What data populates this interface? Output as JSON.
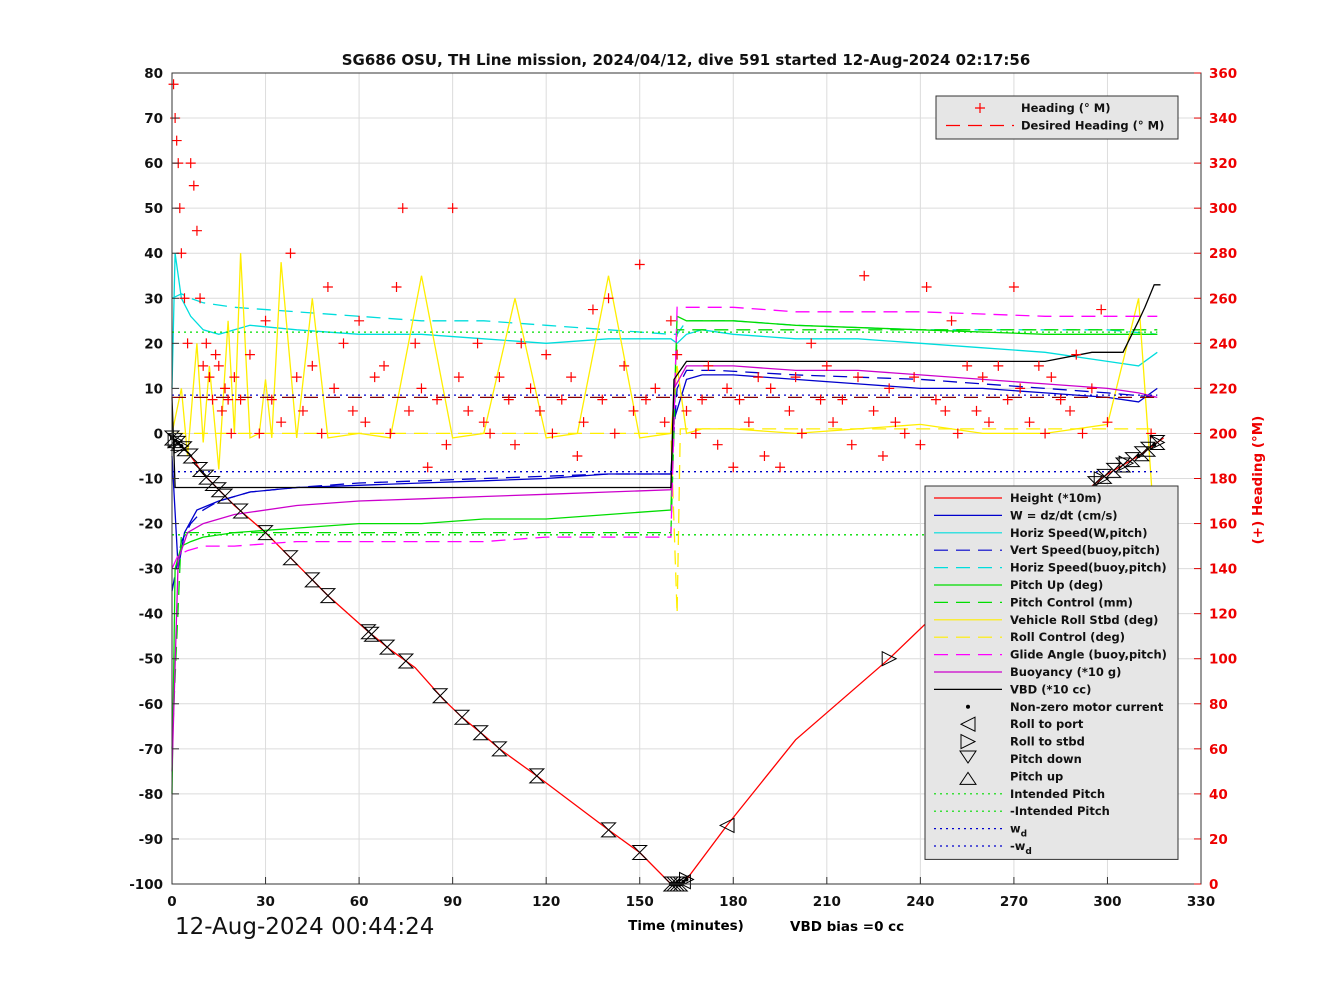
{
  "chart_data": {
    "type": "line",
    "title": "SG686 OSU, TH Line mission, 2024/04/12, dive 591 started 12-Aug-2024 02:17:56",
    "xlabel": "Time (minutes)",
    "ylabel_right": "(+) Heading (°M)",
    "xlim": [
      0,
      330
    ],
    "ylim": [
      -100,
      80
    ],
    "ylim_right": [
      0,
      360
    ],
    "x_ticks": [
      "0",
      "30",
      "60",
      "90",
      "120",
      "150",
      "180",
      "210",
      "240",
      "270",
      "300",
      "330"
    ],
    "y_ticks": [
      "80",
      "70",
      "60",
      "50",
      "40",
      "30",
      "20",
      "10",
      "0",
      "-10",
      "-20",
      "-30",
      "-40",
      "-50",
      "-60",
      "-70",
      "-80",
      "-90",
      "-100"
    ],
    "y_ticks_right": [
      "360",
      "340",
      "320",
      "300",
      "280",
      "260",
      "240",
      "220",
      "200",
      "180",
      "160",
      "140",
      "120",
      "100",
      "80",
      "60",
      "40",
      "20",
      "0"
    ],
    "grid": true,
    "start_time_text": "12-Aug-2024 00:44:24",
    "vbd_bias_text": "VBD bias =0 cc",
    "legend_top": [
      {
        "label": "Heading (° M)",
        "color": "#ff0000",
        "style": "plus"
      },
      {
        "label": "Desired Heading (° M)",
        "color": "#ff0000",
        "style": "dash"
      }
    ],
    "legend_main": [
      {
        "label": "Height (*10m)",
        "color": "#ff0000",
        "style": "solid"
      },
      {
        "label": "W = dz/dt (cm/s)",
        "color": "#0000cc",
        "style": "solid"
      },
      {
        "label": "Horiz Speed(W,pitch)",
        "color": "#00dddd",
        "style": "solid"
      },
      {
        "label": "Vert Speed(buoy,pitch)",
        "color": "#0000cc",
        "style": "dash"
      },
      {
        "label": "Horiz Speed(buoy,pitch)",
        "color": "#00dddd",
        "style": "dash"
      },
      {
        "label": "Pitch Up (deg)",
        "color": "#00dd00",
        "style": "solid"
      },
      {
        "label": "Pitch Control (mm)",
        "color": "#00dd00",
        "style": "dash"
      },
      {
        "label": "Vehicle Roll Stbd (deg)",
        "color": "#ffee00",
        "style": "solid"
      },
      {
        "label": "Roll Control (deg)",
        "color": "#ffee00",
        "style": "dash"
      },
      {
        "label": "Glide Angle (buoy,pitch)",
        "color": "#ff00ff",
        "style": "dash"
      },
      {
        "label": "Buoyancy (*10 g)",
        "color": "#cc00cc",
        "style": "solid"
      },
      {
        "label": "VBD (*10 cc)",
        "color": "#000000",
        "style": "solid"
      },
      {
        "label": "Non-zero motor current",
        "color": "#000000",
        "style": "dot"
      },
      {
        "label": "Roll to port",
        "color": "#000000",
        "style": "tri-left"
      },
      {
        "label": "Roll to stbd",
        "color": "#000000",
        "style": "tri-right"
      },
      {
        "label": "Pitch down",
        "color": "#000000",
        "style": "tri-down"
      },
      {
        "label": "Pitch up",
        "color": "#000000",
        "style": "tri-up"
      },
      {
        "label": "Intended Pitch",
        "color": "#00dd00",
        "style": "dotted"
      },
      {
        "label": "-Intended Pitch",
        "color": "#00dd00",
        "style": "dotted"
      },
      {
        "label": "w",
        "sub": "d",
        "color": "#0000cc",
        "style": "dotted"
      },
      {
        "label": "-w",
        "sub": "d",
        "color": "#0000cc",
        "style": "dotted"
      }
    ],
    "series": [
      {
        "name": "Height (*10m)",
        "color": "#ff0000",
        "style": "solid",
        "x": [
          0,
          5,
          10,
          20,
          30,
          40,
          50,
          63,
          70,
          78,
          87,
          93,
          100,
          105,
          117,
          140,
          150,
          160,
          163,
          165,
          178,
          200,
          230,
          245,
          253,
          270,
          285,
          300,
          310,
          318
        ],
        "y": [
          -1,
          -4,
          -9,
          -16,
          -22,
          -29,
          -36,
          -44,
          -48,
          -52,
          -59,
          -63,
          -67,
          -70,
          -76,
          -88,
          -93,
          -100,
          -100,
          -99,
          -87,
          -68,
          -50,
          -40,
          -35,
          -20,
          -17,
          -9,
          -5,
          -1
        ]
      },
      {
        "name": "W = dz/dt (cm/s)",
        "color": "#0000cc",
        "style": "solid",
        "x": [
          0,
          2,
          4,
          8,
          15,
          25,
          40,
          60,
          80,
          100,
          120,
          140,
          160,
          161,
          165,
          170,
          180,
          200,
          220,
          240,
          260,
          280,
          300,
          310,
          316
        ],
        "y": [
          -5,
          -30,
          -22,
          -17,
          -15,
          -13,
          -12,
          -11.5,
          -11,
          -10.5,
          -10,
          -9,
          -9,
          3,
          12,
          13,
          13,
          12,
          11,
          10,
          10,
          9,
          8,
          7,
          10
        ]
      },
      {
        "name": "Horiz Speed(W,pitch)",
        "color": "#00dddd",
        "style": "solid",
        "x": [
          0,
          1,
          3,
          6,
          10,
          15,
          25,
          40,
          60,
          80,
          100,
          120,
          140,
          160,
          162,
          165,
          170,
          180,
          200,
          220,
          240,
          260,
          280,
          300,
          310,
          316
        ],
        "y": [
          10,
          40,
          30,
          26,
          23,
          22,
          24,
          23,
          22,
          22,
          21,
          20,
          21,
          21,
          20,
          22,
          23,
          22,
          21,
          21,
          20,
          19,
          18,
          16,
          15,
          18
        ]
      },
      {
        "name": "Vert Speed(buoy,pitch)",
        "color": "#0000cc",
        "style": "dash",
        "x": [
          0,
          3,
          6,
          10,
          15,
          25,
          40,
          60,
          80,
          100,
          120,
          140,
          160,
          162,
          165,
          175,
          200,
          240,
          280,
          300,
          316
        ],
        "y": [
          -35,
          -24,
          -20,
          -17,
          -15,
          -13,
          -12,
          -11,
          -10.5,
          -10,
          -9.5,
          -9,
          -9,
          10,
          14,
          14,
          13,
          12,
          10,
          9,
          8
        ]
      },
      {
        "name": "Horiz Speed(buoy,pitch)",
        "color": "#00dddd",
        "style": "dash",
        "x": [
          0,
          3,
          6,
          10,
          20,
          40,
          60,
          80,
          100,
          120,
          140,
          160,
          162,
          165,
          180,
          200,
          240,
          280,
          300,
          316
        ],
        "y": [
          30,
          31,
          30,
          29,
          28,
          27,
          26,
          25,
          25,
          24,
          23,
          22,
          22,
          25,
          25,
          24,
          23,
          23,
          23,
          22
        ]
      },
      {
        "name": "Pitch Up (deg)",
        "color": "#00dd00",
        "style": "solid",
        "x": [
          0,
          1,
          3,
          6,
          10,
          20,
          40,
          60,
          80,
          100,
          120,
          140,
          160,
          162,
          165,
          180,
          200,
          240,
          280,
          300,
          310,
          316
        ],
        "y": [
          -80,
          -30,
          -25,
          -24,
          -23,
          -22,
          -21,
          -20,
          -20,
          -19,
          -19,
          -18,
          -17,
          26,
          25,
          25,
          24,
          23,
          22,
          22,
          22,
          22
        ]
      },
      {
        "name": "Pitch Control (mm)",
        "color": "#00dd00",
        "style": "dash",
        "x": [
          0,
          3,
          6,
          10,
          20,
          40,
          60,
          80,
          100,
          120,
          140,
          160,
          162,
          165,
          180,
          200,
          240,
          280,
          300,
          316
        ],
        "y": [
          -70,
          -22,
          -22,
          -22,
          -22,
          -22,
          -22,
          -22,
          -22,
          -22,
          -22,
          -22,
          23,
          23,
          23,
          23,
          23,
          23,
          23,
          23
        ]
      },
      {
        "name": "Vehicle Roll Stbd (deg)",
        "color": "#ffee00",
        "style": "solid",
        "x": [
          0,
          3,
          5,
          8,
          10,
          12,
          15,
          18,
          20,
          22,
          25,
          28,
          30,
          32,
          35,
          40,
          45,
          50,
          60,
          70,
          80,
          90,
          100,
          110,
          120,
          130,
          140,
          150,
          160,
          162,
          165,
          170,
          180,
          200,
          220,
          240,
          260,
          280,
          300,
          310,
          316
        ],
        "y": [
          0,
          10,
          -5,
          20,
          -2,
          15,
          -8,
          25,
          0,
          40,
          -1,
          0,
          12,
          -1,
          38,
          -1,
          30,
          -1,
          0,
          -1,
          35,
          -1,
          0,
          30,
          -1,
          0,
          35,
          -1,
          0,
          15,
          0,
          1,
          1,
          0,
          1,
          2,
          0,
          0,
          2,
          30,
          -30
        ]
      },
      {
        "name": "Roll Control (deg)",
        "color": "#ffee00",
        "style": "dash",
        "x": [
          0,
          20,
          40,
          60,
          80,
          100,
          120,
          140,
          160,
          162,
          163,
          164,
          180,
          200,
          240,
          280,
          300,
          316
        ],
        "y": [
          0,
          0,
          0,
          0,
          0,
          0,
          0,
          0,
          0,
          -40,
          1,
          1,
          1,
          1,
          1,
          1,
          1,
          1
        ]
      },
      {
        "name": "Glide Angle (buoy,pitch)",
        "color": "#ff00ff",
        "style": "dash",
        "x": [
          0,
          2,
          5,
          10,
          20,
          40,
          60,
          80,
          100,
          120,
          140,
          160,
          162,
          165,
          180,
          200,
          240,
          280,
          300,
          310,
          316
        ],
        "y": [
          -30,
          -27,
          -26,
          -25,
          -25,
          -24,
          -24,
          -24,
          -24,
          -23,
          -23,
          -23,
          28,
          28,
          28,
          27,
          27,
          26,
          26,
          26,
          26
        ]
      },
      {
        "name": "Buoyancy (*10 g)",
        "color": "#cc00cc",
        "style": "solid",
        "x": [
          0,
          2,
          5,
          10,
          20,
          40,
          60,
          80,
          100,
          120,
          140,
          160,
          161,
          165,
          180,
          200,
          220,
          240,
          260,
          280,
          300,
          310,
          316
        ],
        "y": [
          -75,
          -28,
          -22,
          -20,
          -18,
          -16,
          -15,
          -14.5,
          -14,
          -13.5,
          -13,
          -12.5,
          10,
          15,
          15,
          14,
          14,
          13,
          12,
          11,
          10,
          9,
          8
        ]
      },
      {
        "name": "VBD (*10 cc)",
        "color": "#000000",
        "style": "solid",
        "x": [
          0,
          1,
          10,
          30,
          60,
          100,
          140,
          160,
          161,
          165,
          200,
          240,
          280,
          295,
          305,
          310,
          312,
          315,
          317
        ],
        "y": [
          8,
          -12,
          -12,
          -12,
          -12,
          -12,
          -12,
          -12,
          12,
          16,
          16,
          16,
          16,
          18,
          18,
          25,
          28,
          33,
          33
        ]
      },
      {
        "name": "Intended Pitch",
        "color": "#00dd00",
        "style": "dotted",
        "x": [
          0,
          316
        ],
        "y": [
          22.5,
          22.5
        ]
      },
      {
        "name": "-Intended Pitch",
        "color": "#00dd00",
        "style": "dotted",
        "x": [
          0,
          316
        ],
        "y": [
          -22.5,
          -22.5
        ]
      },
      {
        "name": "w",
        "color": "#0000cc",
        "style": "dotted",
        "x": [
          0,
          316
        ],
        "y": [
          8.5,
          8.5
        ]
      },
      {
        "name": "-w",
        "color": "#0000cc",
        "style": "dotted",
        "x": [
          0,
          316
        ],
        "y": [
          -8.5,
          -8.5
        ]
      },
      {
        "name": "Desired Heading (° M)",
        "color": "#8b0000",
        "style": "dash",
        "axis": "right",
        "x": [
          0,
          316
        ],
        "y": [
          216,
          216
        ]
      }
    ],
    "heading_points": {
      "name": "Heading (° M)",
      "axis": "right",
      "color": "#ff0000",
      "x": [
        0.5,
        1,
        1.5,
        2,
        2.5,
        3,
        4,
        5,
        6,
        7,
        8,
        9,
        10,
        11,
        12,
        13,
        14,
        15,
        16,
        17,
        18,
        19,
        20,
        22,
        25,
        28,
        30,
        32,
        35,
        38,
        40,
        42,
        45,
        48,
        50,
        52,
        55,
        58,
        60,
        62,
        65,
        68,
        70,
        72,
        74,
        76,
        78,
        80,
        82,
        85,
        88,
        90,
        92,
        95,
        98,
        100,
        102,
        105,
        108,
        110,
        112,
        115,
        118,
        120,
        122,
        125,
        128,
        130,
        132,
        135,
        138,
        140,
        142,
        145,
        148,
        150,
        152,
        155,
        158,
        160,
        162,
        165,
        168,
        170,
        172,
        175,
        178,
        180,
        182,
        185,
        188,
        190,
        192,
        195,
        198,
        200,
        202,
        205,
        208,
        210,
        212,
        215,
        218,
        220,
        222,
        225,
        228,
        230,
        232,
        235,
        238,
        240,
        242,
        245,
        248,
        250,
        252,
        255,
        258,
        260,
        262,
        265,
        268,
        270,
        272,
        275,
        278,
        280,
        282,
        285,
        288,
        290,
        292,
        295,
        298,
        300,
        302,
        305,
        308,
        310,
        312,
        314,
        316
      ],
      "y": [
        355,
        340,
        330,
        320,
        300,
        280,
        260,
        240,
        320,
        310,
        290,
        260,
        230,
        240,
        225,
        215,
        235,
        230,
        210,
        220,
        215,
        200,
        225,
        215,
        235,
        200,
        250,
        215,
        205,
        280,
        225,
        210,
        230,
        200,
        265,
        220,
        240,
        210,
        250,
        205,
        225,
        230,
        200,
        265,
        300,
        210,
        240,
        220,
        185,
        215,
        195,
        300,
        225,
        210,
        240,
        205,
        200,
        225,
        215,
        195,
        240,
        220,
        210,
        235,
        200,
        215,
        225,
        190,
        205,
        255,
        215,
        260,
        200,
        230,
        210,
        275,
        215,
        220,
        205,
        250,
        235,
        210,
        200,
        215,
        230,
        195,
        220,
        185,
        215,
        205,
        225,
        190,
        220,
        185,
        210,
        225,
        200,
        240,
        215,
        230,
        205,
        215,
        195,
        225,
        270,
        210,
        190,
        220,
        205,
        200,
        225,
        195,
        265,
        215,
        210,
        250,
        200,
        230,
        210,
        225,
        205,
        230,
        215,
        265,
        220,
        205,
        230,
        200,
        225,
        215,
        210,
        235,
        200,
        220,
        255,
        205,
        150,
        120,
        80,
        160,
        110,
        200,
        170
      ]
    },
    "markers": {
      "pitch_down_x": [
        0,
        1,
        2,
        4,
        6,
        9,
        11,
        13,
        15,
        17,
        22,
        30,
        38,
        45,
        50,
        63,
        64,
        69,
        75,
        86,
        93,
        99,
        105,
        117,
        140,
        150,
        160,
        161,
        162,
        163,
        296,
        299,
        302,
        305,
        308,
        311,
        313,
        316
      ],
      "roll_port_x": [
        164,
        178
      ],
      "roll_stbd_x": [
        1,
        3,
        165,
        230,
        246,
        253,
        264,
        286,
        298,
        306,
        316
      ],
      "motor_current_x": [
        0,
        1,
        2,
        3,
        160,
        161,
        162,
        163,
        164,
        165,
        310,
        315
      ]
    }
  }
}
